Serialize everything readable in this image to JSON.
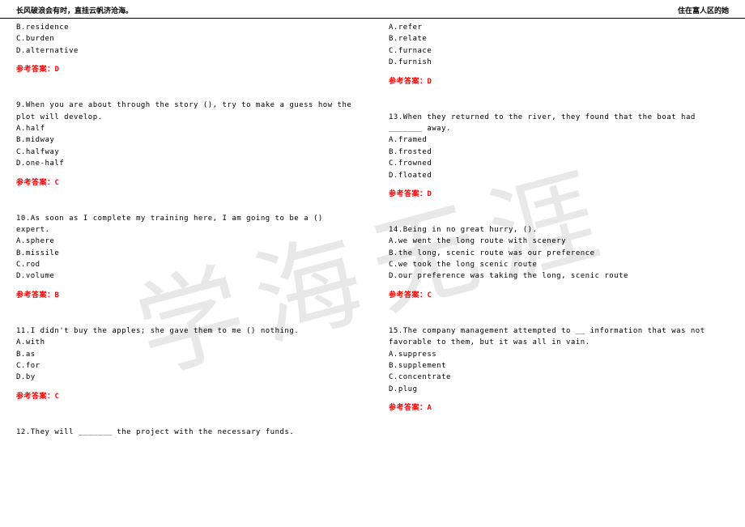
{
  "header": {
    "left": "长风破浪会有时，直挂云帆济沧海。",
    "right": "住在富人区的她"
  },
  "watermark": "学海无涯",
  "colors": {
    "answer": "#ff0000",
    "text": "#000000",
    "watermark": "#e8e8e8",
    "background": "#ffffff"
  },
  "left_column": {
    "q8_options": {
      "b": "B.residence",
      "c": "C.burden",
      "d": "D.alternative"
    },
    "q8_answer": "参考答案：D",
    "q9": {
      "text": "9.When you are about through the story (), try to make a guess how the plot will develop.",
      "a": "A.half",
      "b": "B.midway",
      "c": "C.halfway",
      "d": "D.one-half",
      "answer": "参考答案：C"
    },
    "q10": {
      "text": "10.As soon as I complete my training here, I am going to be a () expert.",
      "a": "A.sphere",
      "b": "B.missile",
      "c": "C.rod",
      "d": "D.volume",
      "answer": "参考答案：B"
    },
    "q11": {
      "text": "11.I didn't buy the apples; she gave them to me () nothing.",
      "a": "A.with",
      "b": "B.as",
      "c": "C.for",
      "d": "D.by",
      "answer": "参考答案：C"
    },
    "q12": {
      "text": "12.They will _______ the project with the necessary funds."
    }
  },
  "right_column": {
    "q12_options": {
      "a": "A.refer",
      "b": "B.relate",
      "c": "C.furnace",
      "d": "D.furnish"
    },
    "q12_answer": "参考答案：D",
    "q13": {
      "text": "13.When they returned to the river, they found that the boat had _______ away.",
      "a": "A.framed",
      "b": "B.frosted",
      "c": "C.frowned",
      "d": "D.floated",
      "answer": "参考答案：D"
    },
    "q14": {
      "text": "14.Being in no great hurry, ().",
      "a": "A.we went the long route with scenery",
      "b": "B.the long, scenic route was our preference",
      "c": "C.we took the long scenic route",
      "d": "D.our preference was taking the long, scenic route",
      "answer": "参考答案：C"
    },
    "q15": {
      "text": "15.The company management attempted to __ information that was not favorable to them, but it was all in vain.",
      "a": "A.suppress",
      "b": "B.supplement",
      "c": "C.concentrate",
      "d": "D.plug",
      "answer": "参考答案：A"
    }
  }
}
